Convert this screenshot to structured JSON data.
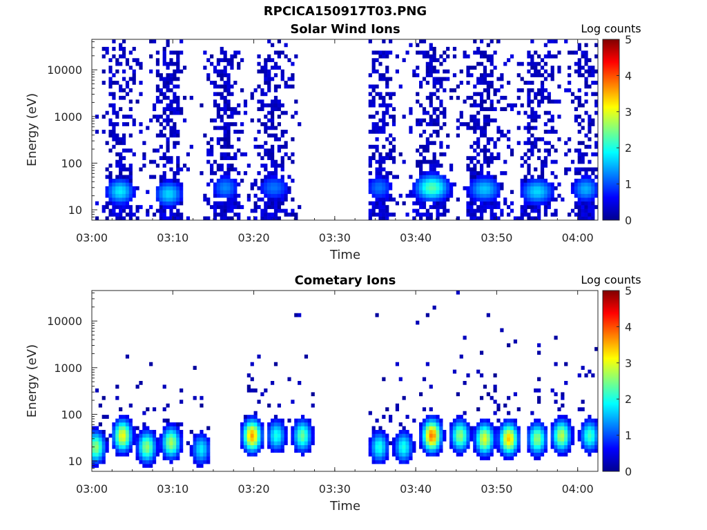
{
  "figure": {
    "title": "RPCICA150917T03.PNG"
  },
  "colorbar": {
    "label": "Log counts",
    "ticks": [
      "0",
      "1",
      "2",
      "3",
      "4",
      "5"
    ],
    "range": [
      0,
      5
    ],
    "colormap": "jet"
  },
  "chart_data": [
    {
      "type": "heatmap",
      "title": "Solar Wind Ions",
      "xlabel": "Time",
      "ylabel": "Energy (eV)",
      "x_tick_labels": [
        "03:00",
        "03:10",
        "03:20",
        "03:30",
        "03:40",
        "03:50",
        "04:00"
      ],
      "x_ticks_min": [
        0,
        10,
        20,
        30,
        40,
        50,
        60
      ],
      "xlim_min": [
        0,
        62.5
      ],
      "y_scale": "log",
      "y_tick_labels": [
        "10",
        "100",
        "1000",
        "10000"
      ],
      "y_ticks": [
        10,
        100,
        1000,
        10000
      ],
      "ylim": [
        6,
        45000
      ],
      "colorbar_label": "Log counts",
      "bursts": [
        {
          "center_min": 3.5,
          "width_min": 2.5,
          "peak": 1.8,
          "peak_energy_eV": 25
        },
        {
          "center_min": 9.5,
          "width_min": 2.5,
          "peak": 1.7,
          "peak_energy_eV": 22
        },
        {
          "center_min": 16.5,
          "width_min": 2.5,
          "peak": 1.3,
          "peak_energy_eV": 30
        },
        {
          "center_min": 22.5,
          "width_min": 3.0,
          "peak": 1.2,
          "peak_energy_eV": 30
        },
        {
          "center_min": 35.5,
          "width_min": 2.5,
          "peak": 1.2,
          "peak_energy_eV": 30
        },
        {
          "center_min": 42.0,
          "width_min": 3.0,
          "peak": 2.3,
          "peak_energy_eV": 30
        },
        {
          "center_min": 48.5,
          "width_min": 3.0,
          "peak": 1.6,
          "peak_energy_eV": 28
        },
        {
          "center_min": 55.0,
          "width_min": 3.0,
          "peak": 1.7,
          "peak_energy_eV": 25
        },
        {
          "center_min": 61.0,
          "width_min": 2.5,
          "peak": 1.5,
          "peak_energy_eV": 28
        }
      ],
      "data_gaps_min": [
        [
          27.5,
          34.0
        ]
      ]
    },
    {
      "type": "heatmap",
      "title": "Cometary Ions",
      "xlabel": "Time",
      "ylabel": "Energy (eV)",
      "x_tick_labels": [
        "03:00",
        "03:10",
        "03:20",
        "03:30",
        "03:40",
        "03:50",
        "04:00"
      ],
      "x_ticks_min": [
        0,
        10,
        20,
        30,
        40,
        50,
        60
      ],
      "xlim_min": [
        0,
        62.5
      ],
      "y_scale": "log",
      "y_tick_labels": [
        "10",
        "100",
        "1000",
        "10000"
      ],
      "y_ticks": [
        10,
        100,
        1000,
        10000
      ],
      "ylim": [
        6,
        45000
      ],
      "colorbar_label": "Log counts",
      "bursts": [
        {
          "center_min": 0.5,
          "peak": 2.6,
          "peak_energy_eV": 20
        },
        {
          "center_min": 3.8,
          "peak": 3.1,
          "peak_energy_eV": 35
        },
        {
          "center_min": 6.8,
          "peak": 2.6,
          "peak_energy_eV": 20
        },
        {
          "center_min": 9.8,
          "peak": 2.7,
          "peak_energy_eV": 25
        },
        {
          "center_min": 13.5,
          "peak": 1.8,
          "peak_energy_eV": 18
        },
        {
          "center_min": 19.8,
          "peak": 3.6,
          "peak_energy_eV": 35
        },
        {
          "center_min": 22.8,
          "peak": 2.0,
          "peak_energy_eV": 35
        },
        {
          "center_min": 26.0,
          "peak": 2.4,
          "peak_energy_eV": 35
        },
        {
          "center_min": 35.5,
          "peak": 2.0,
          "peak_energy_eV": 20
        },
        {
          "center_min": 38.5,
          "peak": 2.0,
          "peak_energy_eV": 20
        },
        {
          "center_min": 42.0,
          "peak": 3.8,
          "peak_energy_eV": 35
        },
        {
          "center_min": 45.5,
          "peak": 2.6,
          "peak_energy_eV": 35
        },
        {
          "center_min": 48.5,
          "peak": 3.0,
          "peak_energy_eV": 30
        },
        {
          "center_min": 51.5,
          "peak": 3.4,
          "peak_energy_eV": 30
        },
        {
          "center_min": 55.0,
          "peak": 2.6,
          "peak_energy_eV": 30
        },
        {
          "center_min": 58.0,
          "peak": 2.8,
          "peak_energy_eV": 35
        },
        {
          "center_min": 61.5,
          "peak": 2.2,
          "peak_energy_eV": 35
        }
      ],
      "data_gaps_min": [
        [
          27.5,
          34.0
        ]
      ]
    }
  ]
}
